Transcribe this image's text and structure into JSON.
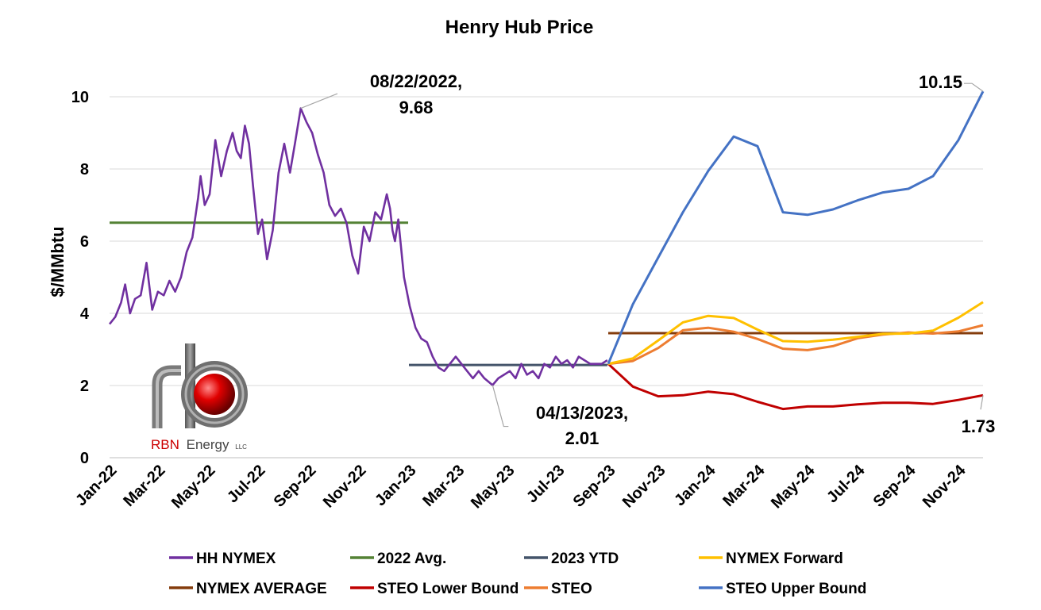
{
  "chart_data": {
    "type": "line",
    "title": "Henry Hub Price",
    "xlabel": "",
    "ylabel": "$/MMbtu",
    "ylim": [
      0,
      10
    ],
    "yticks": [
      0,
      2,
      4,
      6,
      8,
      10
    ],
    "xlim": [
      "2022-01-01",
      "2024-12-01"
    ],
    "xticks": [
      "Jan-22",
      "Mar-22",
      "May-22",
      "Jul-22",
      "Sep-22",
      "Nov-22",
      "Jan-23",
      "Mar-23",
      "May-23",
      "Jul-23",
      "Sep-23",
      "Nov-23",
      "Jan-24",
      "Mar-24",
      "May-24",
      "Jul-24",
      "Sep-24",
      "Nov-24"
    ],
    "grid": "horizontal",
    "legend_position": "bottom",
    "series": [
      {
        "name": "HH NYMEX",
        "color": "#7030A0",
        "x": [
          "2022-01-01",
          "2022-01-08",
          "2022-01-15",
          "2022-01-20",
          "2022-01-26",
          "2022-02-01",
          "2022-02-08",
          "2022-02-15",
          "2022-02-22",
          "2022-03-01",
          "2022-03-08",
          "2022-03-15",
          "2022-03-22",
          "2022-03-29",
          "2022-04-05",
          "2022-04-12",
          "2022-04-19",
          "2022-04-22",
          "2022-04-27",
          "2022-05-03",
          "2022-05-10",
          "2022-05-17",
          "2022-05-24",
          "2022-05-31",
          "2022-06-05",
          "2022-06-10",
          "2022-06-15",
          "2022-06-20",
          "2022-06-25",
          "2022-07-01",
          "2022-07-06",
          "2022-07-12",
          "2022-07-19",
          "2022-07-26",
          "2022-08-02",
          "2022-08-09",
          "2022-08-15",
          "2022-08-22",
          "2022-08-29",
          "2022-09-05",
          "2022-09-12",
          "2022-09-19",
          "2022-09-26",
          "2022-10-03",
          "2022-10-10",
          "2022-10-17",
          "2022-10-24",
          "2022-10-31",
          "2022-11-07",
          "2022-11-14",
          "2022-11-21",
          "2022-11-28",
          "2022-12-05",
          "2022-12-09",
          "2022-12-12",
          "2022-12-15",
          "2022-12-19",
          "2022-12-26",
          "2023-01-02",
          "2023-01-09",
          "2023-01-16",
          "2023-01-23",
          "2023-01-30",
          "2023-02-06",
          "2023-02-13",
          "2023-02-20",
          "2023-02-27",
          "2023-03-06",
          "2023-03-13",
          "2023-03-20",
          "2023-03-27",
          "2023-04-03",
          "2023-04-13",
          "2023-04-20",
          "2023-04-27",
          "2023-05-04",
          "2023-05-11",
          "2023-05-18",
          "2023-05-25",
          "2023-06-01",
          "2023-06-08",
          "2023-06-15",
          "2023-06-22",
          "2023-06-29",
          "2023-07-06",
          "2023-07-13",
          "2023-07-20",
          "2023-07-27",
          "2023-08-03",
          "2023-08-10",
          "2023-08-17",
          "2023-08-24",
          "2023-08-31"
        ],
        "values": [
          3.7,
          3.9,
          4.3,
          4.8,
          4.0,
          4.4,
          4.5,
          5.4,
          4.1,
          4.6,
          4.5,
          4.9,
          4.6,
          5.0,
          5.7,
          6.1,
          7.2,
          7.8,
          7.0,
          7.3,
          8.8,
          7.8,
          8.5,
          9.0,
          8.5,
          8.3,
          9.2,
          8.7,
          7.5,
          6.2,
          6.6,
          5.5,
          6.3,
          7.9,
          8.7,
          7.9,
          8.7,
          9.68,
          9.3,
          9.0,
          8.4,
          7.9,
          7.0,
          6.7,
          6.9,
          6.5,
          5.6,
          5.1,
          6.4,
          6.0,
          6.8,
          6.6,
          7.3,
          6.9,
          6.3,
          6.0,
          6.6,
          5.0,
          4.2,
          3.6,
          3.3,
          3.2,
          2.8,
          2.5,
          2.4,
          2.6,
          2.8,
          2.6,
          2.4,
          2.2,
          2.4,
          2.2,
          2.01,
          2.2,
          2.3,
          2.4,
          2.2,
          2.6,
          2.3,
          2.4,
          2.2,
          2.6,
          2.5,
          2.8,
          2.6,
          2.7,
          2.5,
          2.8,
          2.7,
          2.6,
          2.6,
          2.6,
          2.7
        ]
      },
      {
        "name": "2022 Avg.",
        "color": "#548235",
        "x": [
          "2022-01-01",
          "2022-12-31"
        ],
        "values": [
          6.51,
          6.51
        ]
      },
      {
        "name": "2023 YTD",
        "color": "#44546A",
        "x": [
          "2023-01-01",
          "2023-08-31"
        ],
        "values": [
          2.57,
          2.57
        ]
      },
      {
        "name": "NYMEX Forward",
        "color": "#FFC000",
        "x": [
          "2023-09-01",
          "2023-10-01",
          "2023-11-01",
          "2023-12-01",
          "2024-01-01",
          "2024-02-01",
          "2024-03-01",
          "2024-04-01",
          "2024-05-01",
          "2024-06-01",
          "2024-07-01",
          "2024-08-01",
          "2024-09-01",
          "2024-10-01",
          "2024-11-01",
          "2024-12-01"
        ],
        "values": [
          2.6,
          2.75,
          3.25,
          3.75,
          3.93,
          3.87,
          3.55,
          3.23,
          3.21,
          3.27,
          3.35,
          3.43,
          3.44,
          3.52,
          3.88,
          4.31
        ]
      },
      {
        "name": "NYMEX AVERAGE",
        "color": "#843C0C",
        "x": [
          "2023-09-01",
          "2024-12-01"
        ],
        "values": [
          3.45,
          3.45
        ]
      },
      {
        "name": "STEO Lower Bound",
        "color": "#C00000",
        "x": [
          "2023-09-01",
          "2023-10-01",
          "2023-11-01",
          "2023-12-01",
          "2024-01-01",
          "2024-02-01",
          "2024-03-01",
          "2024-04-01",
          "2024-05-01",
          "2024-06-01",
          "2024-07-01",
          "2024-08-01",
          "2024-09-01",
          "2024-10-01",
          "2024-11-01",
          "2024-12-01"
        ],
        "values": [
          2.6,
          1.97,
          1.7,
          1.73,
          1.83,
          1.76,
          1.55,
          1.35,
          1.42,
          1.42,
          1.48,
          1.52,
          1.52,
          1.49,
          1.6,
          1.73
        ]
      },
      {
        "name": "STEO",
        "color": "#ED7D31",
        "x": [
          "2023-09-01",
          "2023-10-01",
          "2023-11-01",
          "2023-12-01",
          "2024-01-01",
          "2024-02-01",
          "2024-03-01",
          "2024-04-01",
          "2024-05-01",
          "2024-06-01",
          "2024-07-01",
          "2024-08-01",
          "2024-09-01",
          "2024-10-01",
          "2024-11-01",
          "2024-12-01"
        ],
        "values": [
          2.6,
          2.68,
          3.04,
          3.53,
          3.6,
          3.49,
          3.29,
          3.02,
          2.98,
          3.09,
          3.31,
          3.41,
          3.47,
          3.44,
          3.5,
          3.67
        ]
      },
      {
        "name": "STEO Upper Bound",
        "color": "#4472C4",
        "x": [
          "2023-09-01",
          "2023-10-01",
          "2023-11-01",
          "2023-12-01",
          "2024-01-01",
          "2024-02-01",
          "2024-03-01",
          "2024-04-01",
          "2024-05-01",
          "2024-06-01",
          "2024-07-01",
          "2024-08-01",
          "2024-09-01",
          "2024-10-01",
          "2024-11-01",
          "2024-12-01"
        ],
        "values": [
          2.6,
          4.25,
          5.55,
          6.8,
          7.95,
          8.9,
          8.63,
          6.8,
          6.73,
          6.88,
          7.13,
          7.35,
          7.45,
          7.8,
          8.8,
          10.15
        ]
      }
    ],
    "annotations": [
      {
        "line1": "08/22/2022,",
        "line2": "9.68",
        "point": [
          "2022-08-22",
          9.68
        ]
      },
      {
        "line1": "04/13/2023,",
        "line2": "2.01",
        "point": [
          "2023-04-13",
          2.01
        ]
      },
      {
        "text": "10.15",
        "point": [
          "2024-12-01",
          10.15
        ]
      },
      {
        "text": "1.73",
        "point": [
          "2024-12-01",
          1.73
        ]
      }
    ],
    "legend": [
      [
        "HH NYMEX",
        "2022 Avg.",
        "2023 YTD",
        "NYMEX Forward"
      ],
      [
        "NYMEX AVERAGE",
        "STEO Lower Bound",
        "STEO",
        "STEO Upper Bound"
      ]
    ]
  },
  "logo": {
    "brand": "RBN",
    "name": "Energy",
    "suffix": "LLC",
    "brand_color": "#CC0000",
    "name_color": "#444444"
  }
}
